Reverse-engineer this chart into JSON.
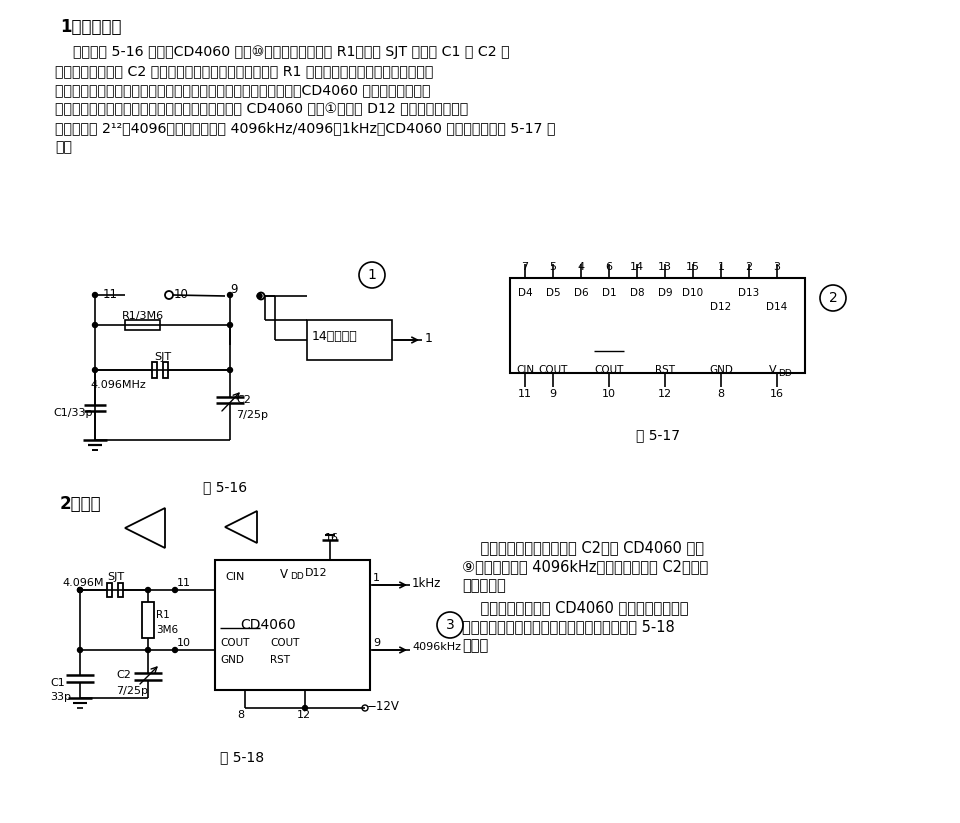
{
  "bg_color": "#ffffff",
  "fig516_caption": "图 5-16",
  "fig517_caption": "图 5-17",
  "fig518_caption": "图 5-18",
  "body1_lines": [
    "    电路如图 5-16 所示。CD4060 与其⑩、⑪脚的外接电阻 R1、晶体 SJT 及电容 C1 和 C2 构",
    "成振荡电路。调整 C2 可将振荡频率调整到准确值。其中 R1 是反馈电阻，以确定门电路的工作",
    "点，使本来工作在开关状态的非门工作于电压传输特性的过渡区。CD4060 输出的振荡信号经",
    "过一级放大后，送到固定分频器部分。本装置是从 CD4060 的第①脚（即 D12 端）输出信号的，",
    "其分频比为 2¹²＝4096，即输出频率为 4096kHz/4096＝1kHz。CD4060 的管脚功能如图 5-17 所",
    "示。"
  ],
  "s2_lines1": [
    "    通电后，调整微调电容器 C2，使 CD4060 的第",
    "⑨脚输出频率为 4096kHz，然后用蜡封固 C2，即可",
    "开始使用。"
  ],
  "s2_lines2": [
    "    同理，也可以利用 CD4060 的其它输出端来获",
    "得多个离散频率点，以满足不同的需要。如图 5-18",
    "所示。"
  ]
}
